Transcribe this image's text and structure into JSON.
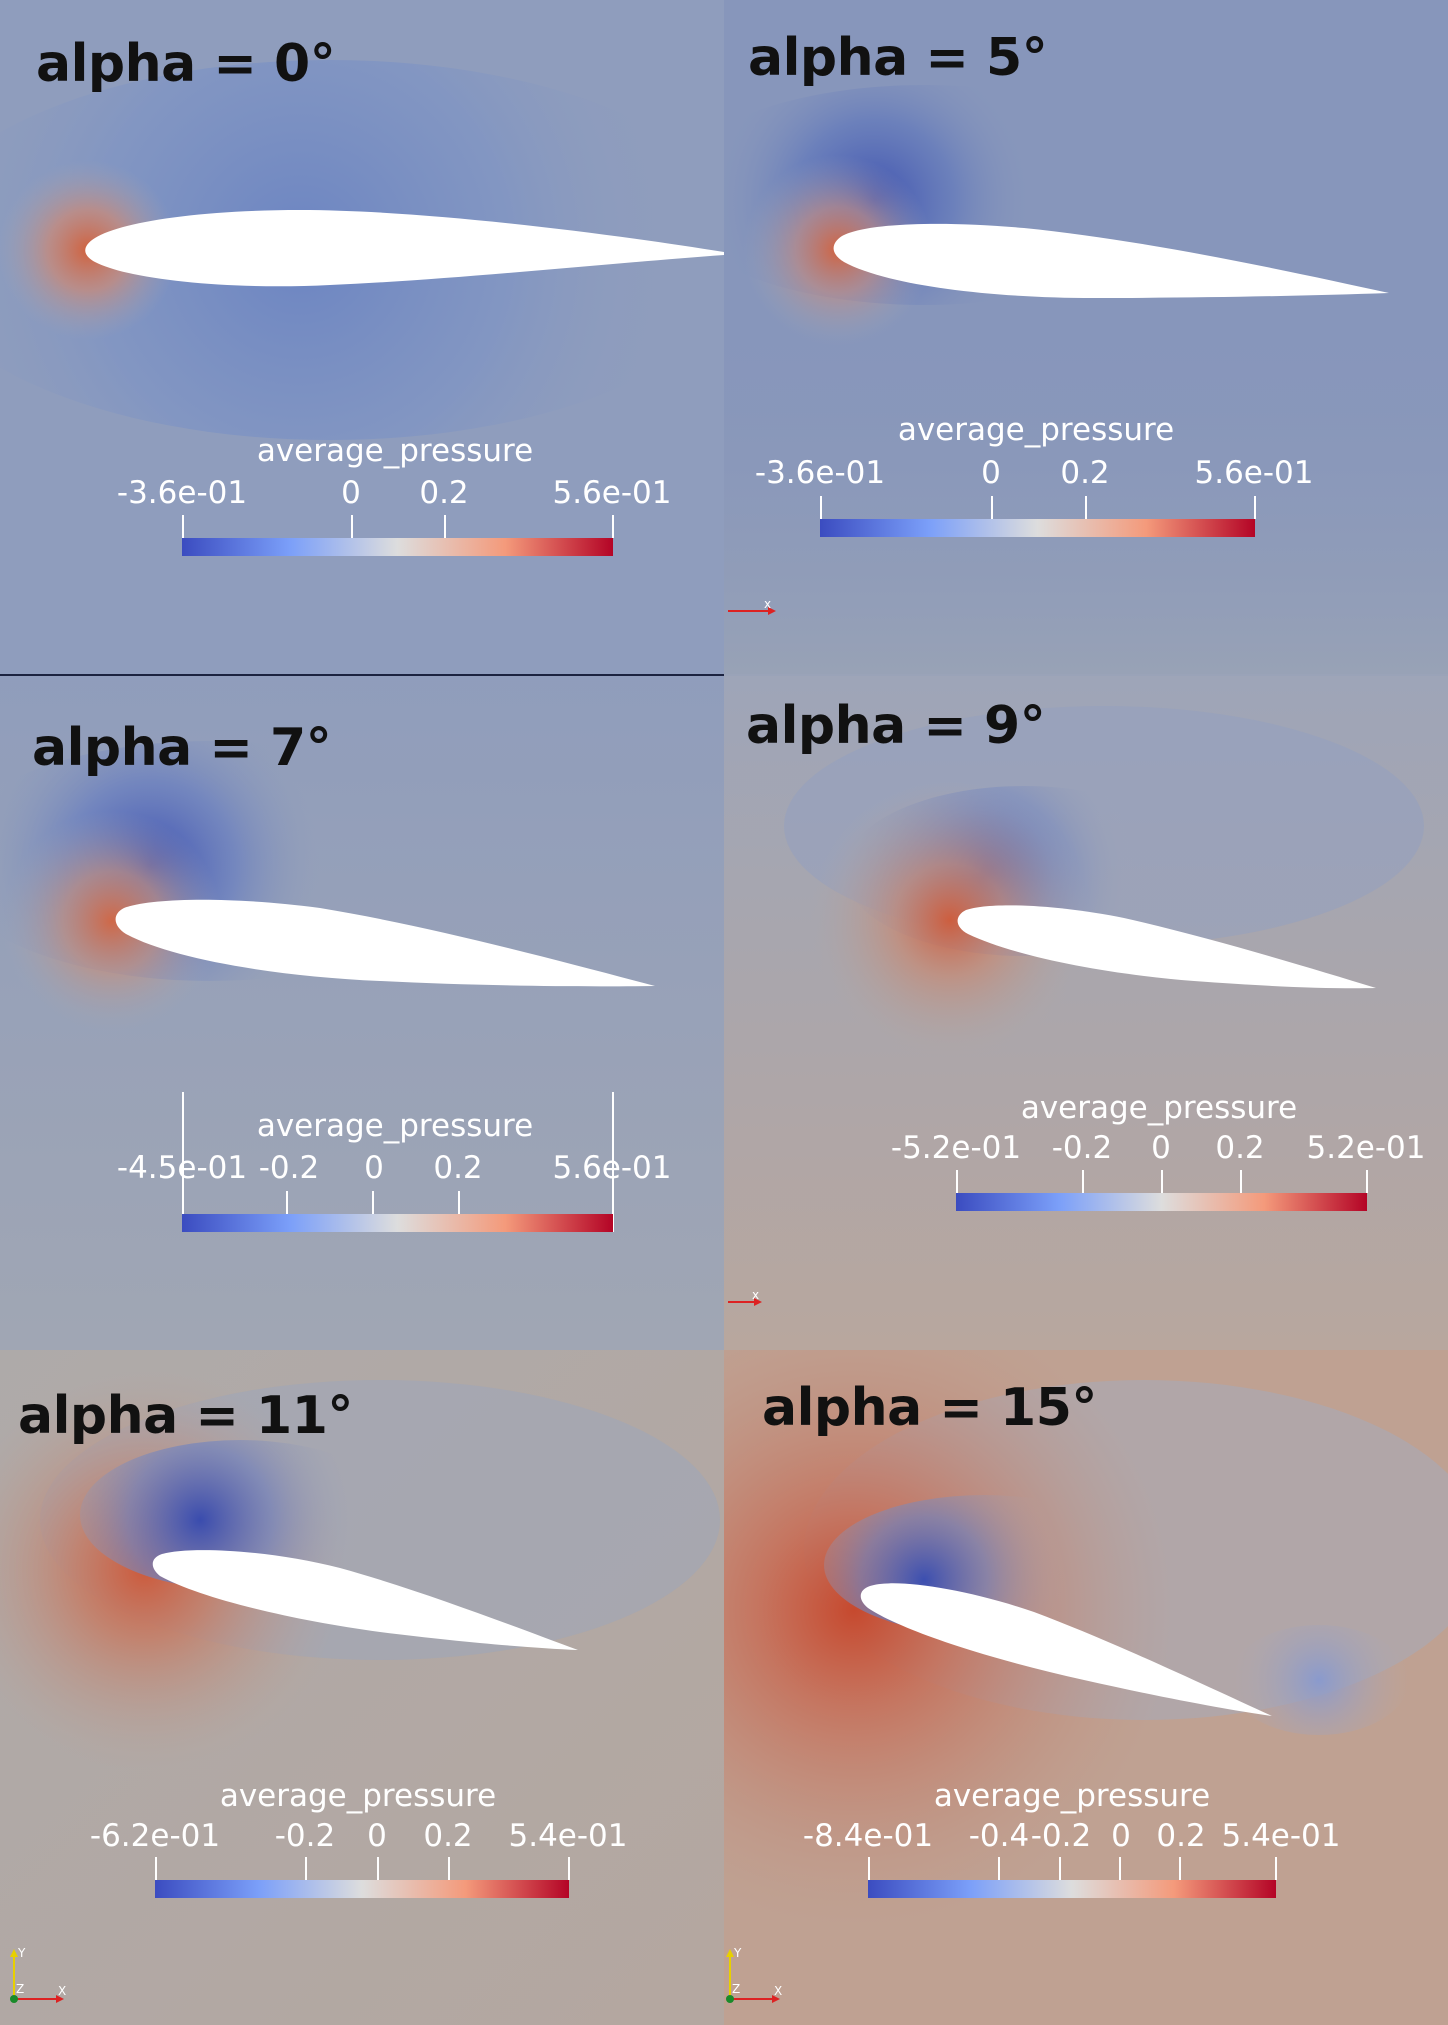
{
  "colorbar_title": "average_pressure",
  "colors": {
    "low": "#3b4cc0",
    "mid": "#dddddd",
    "high": "#b40426",
    "airfoil": "#ffffff"
  },
  "panels": [
    {
      "title": "alpha = 0°",
      "alpha_deg": 0,
      "colorbar_range": [
        -0.36,
        0.56
      ],
      "colorbar_ticks": [
        "-3.6e-01",
        "0",
        "0.2",
        "5.6e-01"
      ],
      "background": "#8f9dbd",
      "has_axes": false
    },
    {
      "title": "alpha = 5°",
      "alpha_deg": 5,
      "colorbar_range": [
        -0.36,
        0.56
      ],
      "colorbar_ticks": [
        "-3.6e-01",
        "0",
        "0.2",
        "5.6e-01"
      ],
      "background": "#8796bb",
      "has_axes": true,
      "axes_labels": [
        "x"
      ]
    },
    {
      "title": "alpha = 7°",
      "alpha_deg": 7,
      "colorbar_range": [
        -0.45,
        0.56
      ],
      "colorbar_ticks": [
        "-4.5e-01",
        "-0.2",
        "0",
        "0.2",
        "5.6e-01"
      ],
      "background": "#97a2b8",
      "has_axes": false
    },
    {
      "title": "alpha = 9°",
      "alpha_deg": 9,
      "colorbar_range": [
        -0.52,
        0.52
      ],
      "colorbar_ticks": [
        "-5.2e-01",
        "-0.2",
        "0",
        "0.2",
        "5.2e-01"
      ],
      "background": "#a9aaad",
      "has_axes": true,
      "axes_labels": [
        "x"
      ]
    },
    {
      "title": "alpha = 11°",
      "alpha_deg": 11,
      "colorbar_range": [
        -0.62,
        0.54
      ],
      "colorbar_ticks": [
        "-6.2e-01",
        "-0.2",
        "0",
        "0.2",
        "5.4e-01"
      ],
      "background": "#b0aaa6",
      "has_axes": true,
      "axes_labels": [
        "Y",
        "Z",
        "X"
      ]
    },
    {
      "title": "alpha = 15°",
      "alpha_deg": 15,
      "colorbar_range": [
        -0.84,
        0.54
      ],
      "colorbar_ticks": [
        "-8.4e-01",
        "-0.4",
        "-0.2",
        "0",
        "0.2",
        "5.4e-01"
      ],
      "background": "#bfa192",
      "has_axes": true,
      "axes_labels": [
        "Y",
        "Z",
        "X"
      ]
    }
  ]
}
